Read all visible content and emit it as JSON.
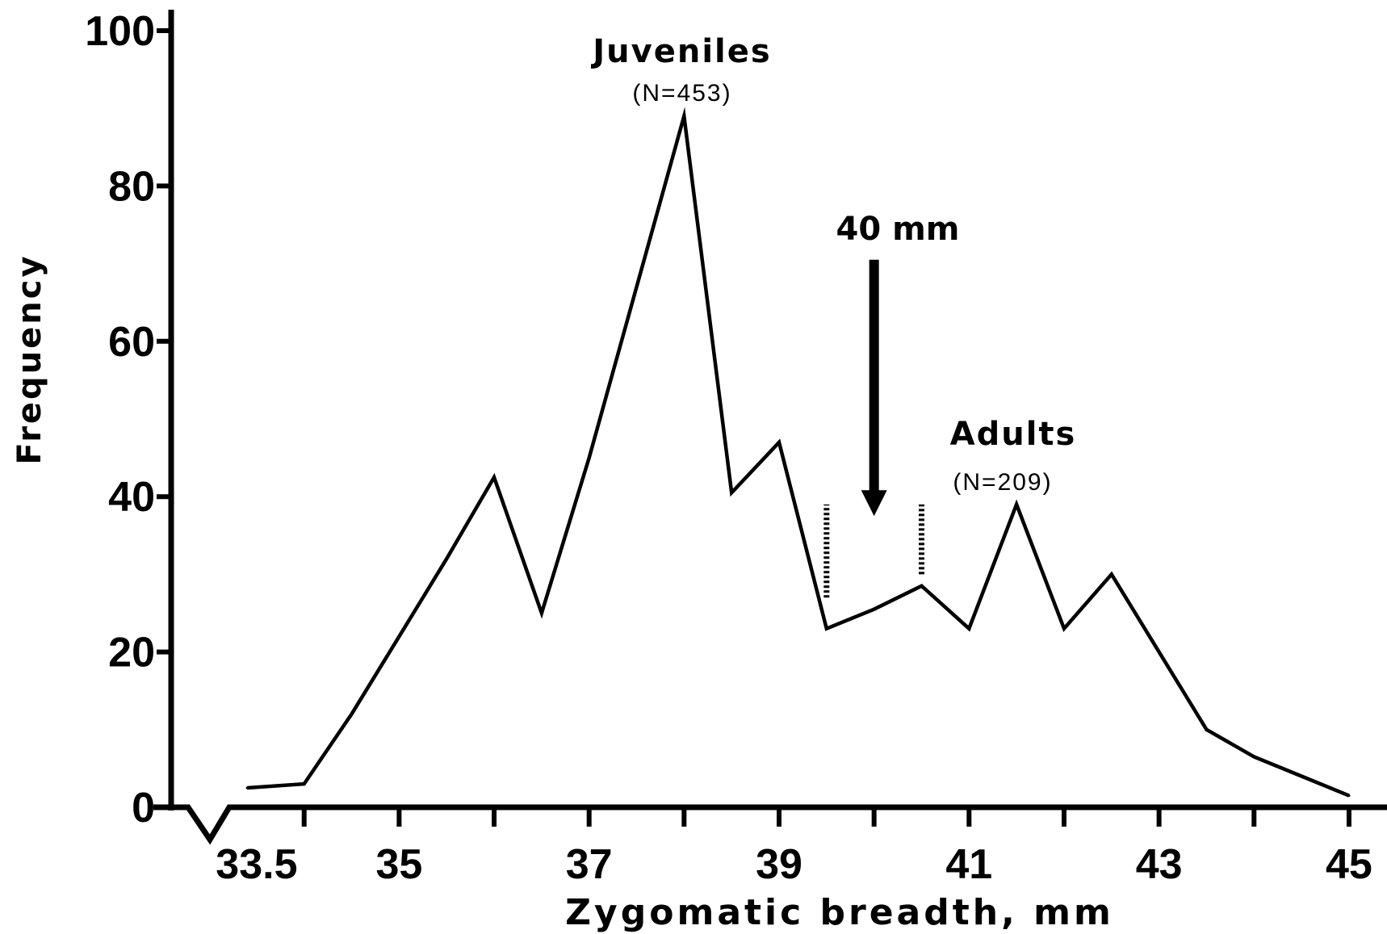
{
  "chart_data": {
    "type": "line",
    "xlabel": "Zygomatic breadth, mm",
    "ylabel": "Frequency",
    "xlim": [
      32.6,
      45.4
    ],
    "ylim": [
      0,
      100
    ],
    "x_ticks": [
      34,
      35,
      36,
      37,
      38,
      39,
      40,
      41,
      42,
      43,
      44,
      45
    ],
    "x_tick_labels": [
      {
        "value": 33.5,
        "label": "33.5"
      },
      {
        "value": 35,
        "label": "35"
      },
      {
        "value": 37,
        "label": "37"
      },
      {
        "value": 39,
        "label": "39"
      },
      {
        "value": 41,
        "label": "41"
      },
      {
        "value": 43,
        "label": "43"
      },
      {
        "value": 45,
        "label": "45"
      }
    ],
    "y_ticks": [
      0,
      20,
      40,
      60,
      80,
      100
    ],
    "y_tick_labels": [
      "0",
      "20",
      "40",
      "60",
      "80",
      "100"
    ],
    "grid": false,
    "series": [
      {
        "x": [
          33.4,
          34.0,
          34.5,
          35.0,
          35.5,
          36.0,
          36.5,
          37.0,
          37.5,
          38.0,
          38.5,
          39.0,
          39.5,
          40.0,
          40.5,
          41.0,
          41.5,
          42.0,
          42.5,
          43.0,
          43.5,
          44.0,
          44.5,
          45.0
        ],
        "y": [
          2.5,
          3.0,
          12.0,
          22.0,
          32.0,
          42.5,
          25.0,
          45.0,
          67.0,
          89.0,
          40.5,
          47.0,
          23.0,
          25.5,
          28.5,
          23.0,
          39.0,
          23.0,
          30.0,
          20.0,
          10.0,
          6.5,
          4.0,
          1.5
        ]
      }
    ],
    "annotations": [
      {
        "title": "Juveniles",
        "n": "(N=453)"
      },
      {
        "title": "Adults",
        "n": "(N=209)"
      },
      {
        "title": "40 mm",
        "arrow_x": 40.0,
        "arrow_y_top": 70.5,
        "arrow_y_bottom": 37.5
      }
    ],
    "interval_markers": [
      {
        "x": 39.5,
        "y_from": 27.0,
        "y_to": 39.0
      },
      {
        "x": 40.5,
        "y_from": 30.0,
        "y_to": 39.0
      }
    ]
  }
}
